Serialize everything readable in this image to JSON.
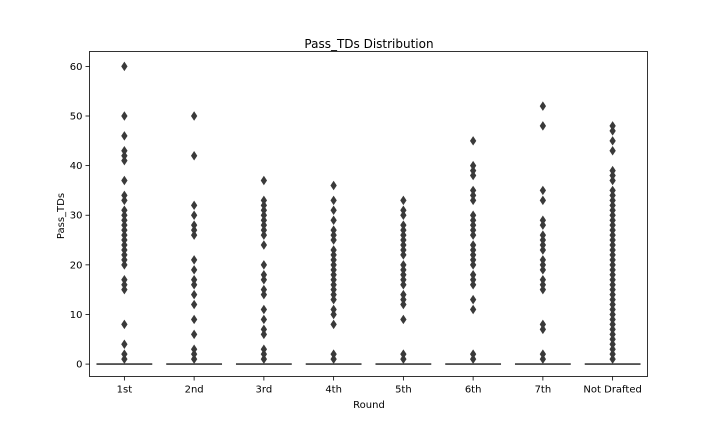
{
  "chart_data": {
    "type": "boxplot",
    "title": "Pass_TDs Distribution",
    "xlabel": "Round",
    "ylabel": "Pass_TDs",
    "categories": [
      "1st",
      "2nd",
      "3rd",
      "4th",
      "5th",
      "6th",
      "7th",
      "Not Drafted"
    ],
    "ylim": [
      -2.5,
      63
    ],
    "yticks": [
      0,
      10,
      20,
      30,
      40,
      50,
      60
    ],
    "grid": false,
    "box_color": "#3a3a3a",
    "median": [
      0,
      0,
      0,
      0,
      0,
      0,
      0,
      0
    ],
    "outliers": [
      [
        1,
        2,
        4,
        8,
        15,
        16,
        17,
        20,
        21,
        22,
        23,
        24,
        25,
        26,
        27,
        28,
        29,
        30,
        31,
        33,
        34,
        37,
        41,
        42,
        43,
        46,
        50,
        60
      ],
      [
        1,
        2,
        3,
        6,
        9,
        12,
        14,
        16,
        17,
        19,
        21,
        26,
        27,
        28,
        30,
        32,
        42,
        50
      ],
      [
        1,
        2,
        3,
        6,
        7,
        9,
        11,
        14,
        15,
        17,
        18,
        20,
        24,
        26,
        27,
        28,
        29,
        30,
        31,
        32,
        33,
        37
      ],
      [
        1,
        2,
        8,
        10,
        11,
        13,
        14,
        15,
        16,
        17,
        18,
        19,
        20,
        21,
        22,
        23,
        25,
        26,
        27,
        29,
        31,
        33,
        36
      ],
      [
        1,
        2,
        9,
        12,
        13,
        14,
        16,
        17,
        18,
        19,
        20,
        22,
        23,
        24,
        25,
        26,
        27,
        28,
        30,
        31,
        33
      ],
      [
        1,
        2,
        11,
        13,
        16,
        17,
        18,
        20,
        21,
        22,
        23,
        24,
        26,
        27,
        28,
        29,
        30,
        33,
        34,
        35,
        38,
        39,
        40,
        45
      ],
      [
        1,
        2,
        7,
        8,
        15,
        16,
        17,
        19,
        20,
        21,
        23,
        24,
        25,
        26,
        28,
        29,
        33,
        35,
        48,
        52
      ],
      [
        1,
        2,
        3,
        4,
        5,
        6,
        7,
        8,
        9,
        10,
        11,
        12,
        13,
        14,
        15,
        16,
        17,
        18,
        19,
        20,
        21,
        22,
        23,
        24,
        25,
        26,
        27,
        28,
        29,
        30,
        31,
        32,
        33,
        34,
        35,
        37,
        38,
        39,
        43,
        45,
        47,
        48
      ]
    ]
  }
}
